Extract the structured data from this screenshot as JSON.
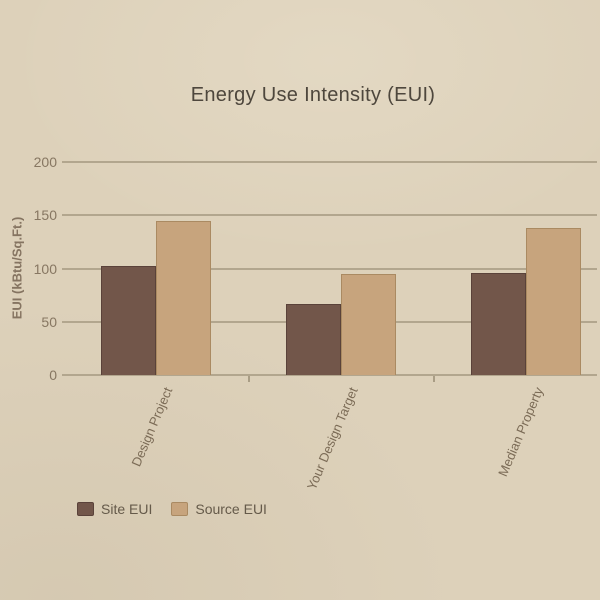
{
  "title": "Energy Use Intensity (EUI)",
  "chart_data": {
    "type": "bar",
    "title": "Energy Use Intensity (EUI)",
    "categories": [
      "Design Project",
      "Your Design Target",
      "Median Property"
    ],
    "series": [
      {
        "name": "Site EUI",
        "color": "#72564a",
        "border_color": "#5a423a",
        "values": [
          102,
          67,
          96
        ]
      },
      {
        "name": "Source EUI",
        "color": "#c7a47d",
        "border_color": "#aa8a62",
        "values": [
          145,
          95,
          138
        ]
      }
    ],
    "xlabel": "",
    "ylabel": "EUI (kBtu/Sq.Ft.)",
    "yticks": [
      0,
      50,
      100,
      150,
      200
    ],
    "ylim": [
      0,
      200
    ],
    "grid": true,
    "legend_position": "bottom-left"
  },
  "colors": {
    "background": "#ddd1ba",
    "gridline": "#b2a68e",
    "title_text": "#4e473d",
    "axis_text": "#877762",
    "legend_text": "#655a4a"
  }
}
